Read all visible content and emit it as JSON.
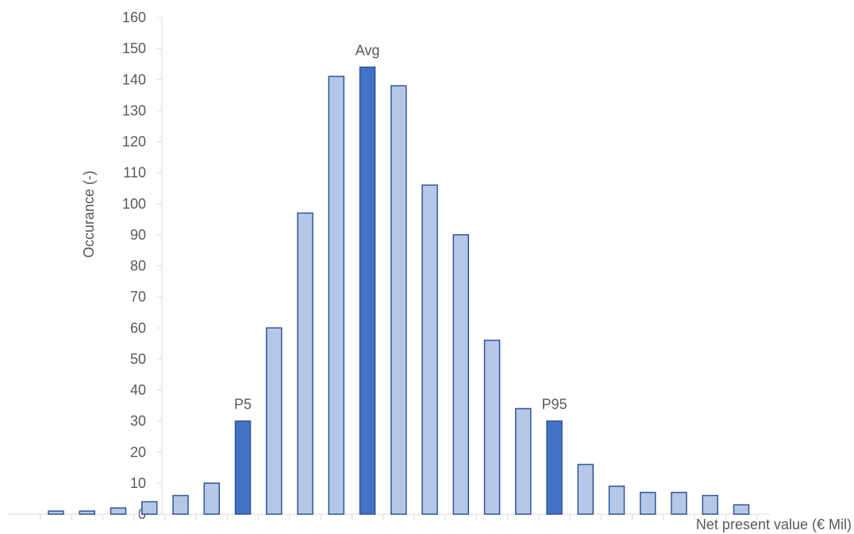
{
  "chart_data": {
    "type": "bar",
    "title": "",
    "xlabel": "Net present value (€ Mil)",
    "ylabel": "Occurance (-)",
    "ylim": [
      0,
      160
    ],
    "yticks": [
      0,
      10,
      20,
      30,
      40,
      50,
      60,
      70,
      80,
      90,
      100,
      110,
      120,
      130,
      140,
      150,
      160
    ],
    "grid": false,
    "legend": "none",
    "values": [
      1,
      1,
      2,
      4,
      6,
      10,
      30,
      60,
      97,
      141,
      144,
      138,
      106,
      90,
      56,
      34,
      30,
      16,
      9,
      7,
      7,
      6,
      3
    ],
    "highlighted": [
      false,
      false,
      false,
      false,
      false,
      false,
      true,
      false,
      false,
      false,
      true,
      false,
      false,
      false,
      false,
      false,
      true,
      false,
      false,
      false,
      false,
      false,
      false
    ],
    "annotations": [
      {
        "bar_index": 6,
        "text": "P5"
      },
      {
        "bar_index": 10,
        "text": "Avg"
      },
      {
        "bar_index": 16,
        "text": "P95"
      }
    ],
    "colors": {
      "bar_fill": "#b4c7e7",
      "bar_stroke": "#2f5597",
      "highlight_fill": "#4472c4",
      "axis": "#d9d9d9",
      "text": "#595959"
    }
  }
}
